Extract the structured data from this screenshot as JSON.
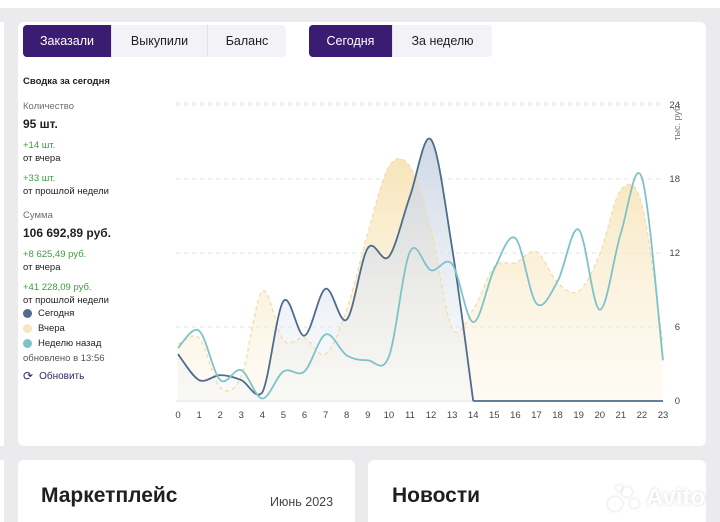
{
  "tabs": {
    "type": [
      {
        "label": "Заказали",
        "active": true
      },
      {
        "label": "Выкупили",
        "active": false
      },
      {
        "label": "Баланс",
        "active": false
      }
    ],
    "period": [
      {
        "label": "Сегодня",
        "active": true
      },
      {
        "label": "За неделю",
        "active": false
      }
    ]
  },
  "summary": {
    "heading": "Сводка за сегодня",
    "qty_label": "Количество",
    "qty_value": "95 шт.",
    "qty_delta_day": "+14 шт.",
    "qty_from_day": "от вчера",
    "qty_delta_week": "+33 шт.",
    "qty_from_week": "от прошлой недели",
    "sum_label": "Сумма",
    "sum_value": "106 692,89 руб.",
    "sum_delta_day": "+8 625,49 руб.",
    "sum_from_day": "от вчера",
    "sum_delta_week": "+41 228,09 руб.",
    "sum_from_week": "от прошлой недели"
  },
  "legend": {
    "today": "Сегодня",
    "yesterday": "Вчера",
    "week_ago": "Неделю назад",
    "updated": "обновлено в 13:56"
  },
  "refresh_label": "Обновить",
  "colors": {
    "accent": "#3b1c73",
    "today": "#4f6c8c",
    "yesterday": "#f7e6bf",
    "week_ago": "#7ec3c9",
    "positive": "#3f9b3f"
  },
  "chart_data": {
    "type": "line",
    "x": [
      0,
      1,
      2,
      3,
      4,
      5,
      6,
      7,
      8,
      9,
      10,
      11,
      12,
      13,
      14,
      15,
      16,
      17,
      18,
      19,
      20,
      21,
      22,
      23
    ],
    "ylabel": "тыс. руб.",
    "ylim": [
      0,
      24
    ],
    "yticks": [
      0,
      6,
      12,
      18,
      24
    ],
    "grid": true,
    "series": [
      {
        "name": "Сегодня",
        "values": [
          3.8,
          1.7,
          2.1,
          1.7,
          0.7,
          8.1,
          5.3,
          9.1,
          6.6,
          12.4,
          11.7,
          16.6,
          21.2,
          12.4,
          0,
          0,
          0,
          0,
          0,
          0,
          0,
          0,
          0,
          0
        ]
      },
      {
        "name": "Вчера",
        "values": [
          4.6,
          5.1,
          1.1,
          2.0,
          8.9,
          4.9,
          5.1,
          3.8,
          7.4,
          13.6,
          19.0,
          19.0,
          13.9,
          5.9,
          7.4,
          10.9,
          11.2,
          12.1,
          9.6,
          8.9,
          11.9,
          17.1,
          15.9,
          4.6
        ]
      },
      {
        "name": "Неделю назад",
        "values": [
          4.3,
          5.7,
          1.7,
          2.5,
          0.2,
          2.4,
          2.4,
          5.4,
          3.7,
          3.3,
          3.6,
          12.1,
          10.6,
          11.1,
          6.4,
          10.7,
          13.2,
          7.9,
          9.7,
          13.9,
          7.4,
          13.6,
          18.1,
          3.3
        ]
      }
    ]
  },
  "bottom": {
    "market_title": "Маркетплейс",
    "market_date": "Июнь 2023",
    "news_title": "Новости"
  },
  "watermark": "Avito"
}
